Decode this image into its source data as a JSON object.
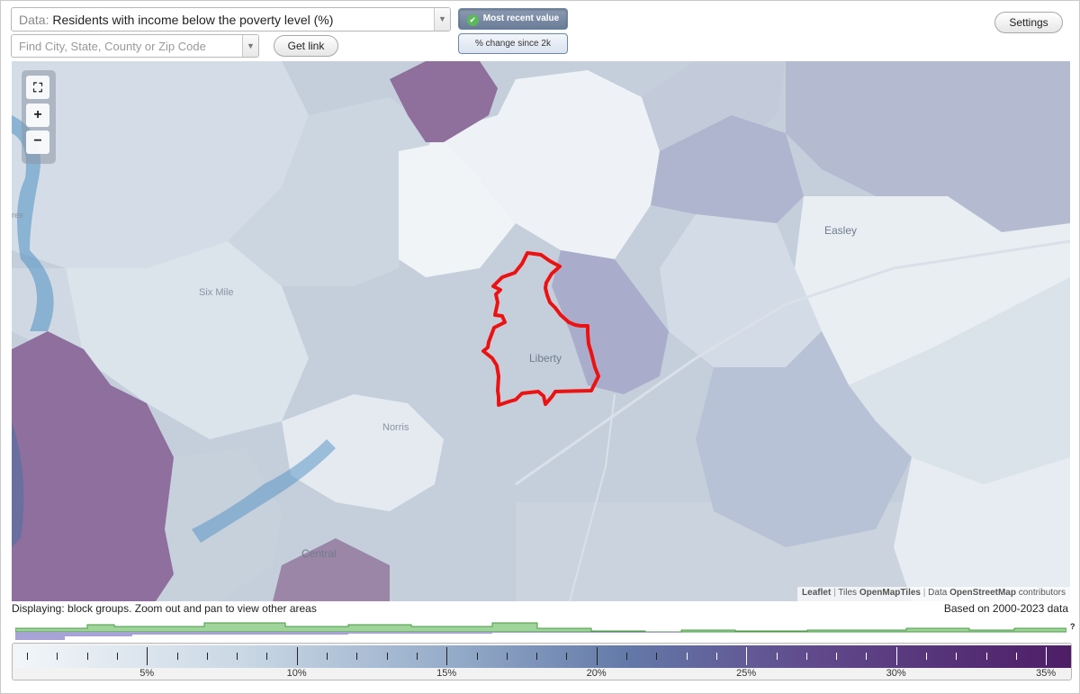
{
  "controls": {
    "data_prefix": "Data:",
    "data_value": "Residents with income below the poverty level (%)",
    "search_placeholder": "Find City, State, County or Zip Code",
    "get_link_label": "Get link",
    "most_recent_label": "Most recent value",
    "pct_change_label": "% change since 2k",
    "settings_label": "Settings",
    "dropdown_arrow_icon": "triangle-down-icon",
    "check_icon": "check-circle-icon"
  },
  "map": {
    "places": {
      "liberty": "Liberty",
      "easley": "Easley",
      "six_mile": "Six Mile",
      "norris": "Norris",
      "central": "Central",
      "partial_left": "ree"
    },
    "zoom": {
      "fit_icon": "fullscreen-icon",
      "in_label": "+",
      "out_label": "−"
    },
    "attribution": {
      "leaflet": "Leaflet",
      "tiles_prefix": "Tiles",
      "tiles_link": "OpenMapTiles",
      "data_prefix": "Data",
      "data_link": "OpenStreetMap",
      "suffix": "contributors"
    },
    "colors": {
      "base": "#c4cfdb",
      "light": "#e7edf3",
      "lightest": "#f1f4f7",
      "mid": "#b5c1d4",
      "purple_mid": "#a8adcc",
      "purple_dark": "#8e6f9d",
      "water": "#4f8fc3",
      "outline": "#ee1111"
    }
  },
  "status": {
    "displaying": "Displaying: block groups. Zoom out and pan to view other areas",
    "based_on": "Based on 2000-2023 data",
    "histogram_help": "?"
  },
  "legend": {
    "ticks": [
      "5%",
      "10%",
      "15%",
      "20%",
      "25%",
      "30%",
      "35%"
    ],
    "colors": {
      "start": "#f2f6f9",
      "end": "#4d1d66",
      "histogram_green": "#9fd49a",
      "histogram_purple": "#a7a3d6"
    }
  }
}
